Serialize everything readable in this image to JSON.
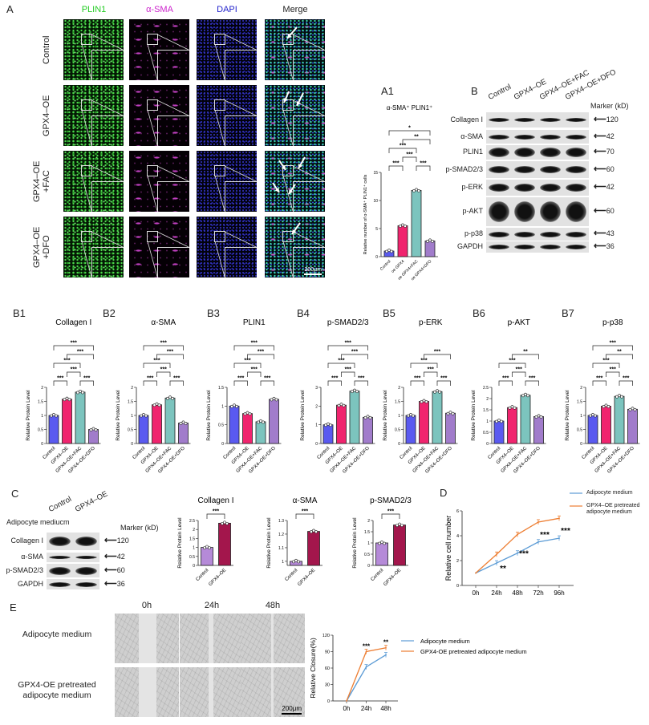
{
  "panel_A": {
    "label": "A",
    "channels": [
      "PLIN1",
      "α-SMA",
      "DAPI",
      "Merge"
    ],
    "channel_colors": [
      "#22cc22",
      "#cc22cc",
      "#2222cc",
      "#222222"
    ],
    "rows": [
      [
        "Control"
      ],
      [
        "GPX4–OE"
      ],
      [
        "GPX4–OE",
        "+FAC"
      ],
      [
        "GPX4–OE",
        "+DFO"
      ]
    ],
    "scale_bar": "200μm"
  },
  "panel_A1": {
    "label": "A1"
  },
  "panel_B": {
    "label": "B",
    "lanes": [
      "Control",
      "GPX4–OE",
      "GPX4–OE+FAC",
      "GPX4–OE+DFO"
    ],
    "marker_title": "Marker (kD)",
    "rows": [
      {
        "protein": "Collagen I",
        "marker": "120"
      },
      {
        "protein": "α-SMA",
        "marker": "42"
      },
      {
        "protein": "PLIN1",
        "marker": "70"
      },
      {
        "protein": "p-SMAD2/3",
        "marker": "60"
      },
      {
        "protein": "p-ERK",
        "marker": "42"
      },
      {
        "protein": "p-AKT",
        "marker": "60"
      },
      {
        "protein": "p-p38",
        "marker": "43"
      },
      {
        "protein": "GAPDH",
        "marker": "36"
      }
    ]
  },
  "panel_B_labels": [
    "B1",
    "B2",
    "B3",
    "B4",
    "B5",
    "B6",
    "B7"
  ],
  "panel_C": {
    "label": "C",
    "condition": "Adipocyte mediucm",
    "lanes": [
      "Control",
      "GPX4–OE"
    ],
    "marker_title": "Marker (kD)",
    "rows": [
      {
        "protein": "Collagen I",
        "marker": "120"
      },
      {
        "protein": "α-SMA",
        "marker": "42"
      },
      {
        "protein": "p-SMAD2/3",
        "marker": "60"
      },
      {
        "protein": "GAPDH",
        "marker": "36"
      }
    ]
  },
  "panel_D": {
    "label": "D"
  },
  "panel_E": {
    "label": "E",
    "timepoints": [
      "0h",
      "24h",
      "48h"
    ],
    "rows": [
      [
        "Adipocyte medium"
      ],
      [
        "GPX4-OE pretreated",
        "adipocyte medium"
      ]
    ],
    "scale_bar": "200μm"
  },
  "colors": {
    "Control": "#5a5af0",
    "GPX4-OE": "#f0246e",
    "GPX4-OE+FAC": "#7cc4be",
    "GPX4-OE+DFO": "#a17ccb",
    "C_Control": "#b58ad8",
    "C_GPX4-OE": "#a3164c",
    "line_adipocyte": "#5b9bd5",
    "line_gpx4": "#ed7d31"
  },
  "chart_data": [
    {
      "id": "A1",
      "type": "bar",
      "title": "α-SMA⁺ PLIN1⁺",
      "ylabel": "Relative number of α-SMA⁺ PLIN1⁺ cells",
      "categories": [
        "Control",
        "oe GPX4",
        "oe GPX4+FAC",
        "oe GPX4+DFO"
      ],
      "values": [
        1.0,
        5.5,
        11.8,
        2.8
      ],
      "ylim": [
        0,
        15
      ],
      "yticks": [
        0,
        5,
        10,
        15
      ],
      "colors": [
        "#5a5af0",
        "#f0246e",
        "#7cc4be",
        "#a17ccb"
      ],
      "significance": [
        [
          0,
          1,
          "***"
        ],
        [
          2,
          3,
          "***"
        ],
        [
          1,
          2,
          "***"
        ],
        [
          0,
          2,
          "***"
        ],
        [
          1,
          3,
          "**"
        ],
        [
          0,
          3,
          "*"
        ]
      ]
    },
    {
      "id": "B1",
      "type": "bar",
      "title": "Collagen I",
      "ylabel": "Relative Protein Level",
      "categories": [
        "Control",
        "GPX4–OE",
        "GPX4–OE+FAC",
        "GPX4–OE+DFO"
      ],
      "values": [
        1.0,
        1.58,
        1.83,
        0.5
      ],
      "ylim": [
        0,
        2
      ],
      "yticks": [
        0,
        0.5,
        1.0,
        1.5,
        2.0
      ],
      "colors": [
        "#5a5af0",
        "#f0246e",
        "#7cc4be",
        "#a17ccb"
      ],
      "significance": [
        [
          0,
          1,
          "***"
        ],
        [
          2,
          3,
          "***"
        ],
        [
          1,
          2,
          "***"
        ],
        [
          0,
          2,
          "***"
        ],
        [
          1,
          3,
          "***"
        ],
        [
          0,
          3,
          "***"
        ]
      ]
    },
    {
      "id": "B2",
      "type": "bar",
      "title": "α-SMA",
      "ylabel": "Relative Protein Level",
      "categories": [
        "Control",
        "GPX4–OE",
        "GPX4–OE+FAC",
        "GPX4–OE+DFO"
      ],
      "values": [
        1.0,
        1.38,
        1.62,
        0.73
      ],
      "ylim": [
        0,
        2
      ],
      "yticks": [
        0,
        0.5,
        1.0,
        1.5,
        2.0
      ],
      "colors": [
        "#5a5af0",
        "#f0246e",
        "#7cc4be",
        "#a17ccb"
      ],
      "significance": [
        [
          0,
          1,
          "***"
        ],
        [
          2,
          3,
          "***"
        ],
        [
          1,
          2,
          "***"
        ],
        [
          0,
          2,
          "***"
        ],
        [
          1,
          3,
          "***"
        ],
        [
          0,
          3,
          "***"
        ]
      ]
    },
    {
      "id": "B3",
      "type": "bar",
      "title": "PLIN1",
      "ylabel": "Relative Protein Level",
      "categories": [
        "Control",
        "GPX4–OE",
        "GPX4–OE+FAC",
        "GPX4–OE+DFO"
      ],
      "values": [
        1.0,
        0.8,
        0.58,
        1.18
      ],
      "ylim": [
        0,
        1.5
      ],
      "yticks": [
        0,
        0.5,
        1.0,
        1.5
      ],
      "colors": [
        "#5a5af0",
        "#f0246e",
        "#7cc4be",
        "#a17ccb"
      ],
      "significance": [
        [
          0,
          1,
          "***"
        ],
        [
          2,
          3,
          "***"
        ],
        [
          1,
          2,
          "***"
        ],
        [
          0,
          2,
          "***"
        ],
        [
          1,
          3,
          "***"
        ],
        [
          0,
          3,
          "***"
        ]
      ]
    },
    {
      "id": "B4",
      "type": "bar",
      "title": "p-SMAD2/3",
      "ylabel": "Relative Protein Level",
      "categories": [
        "Control",
        "GPX4–OE",
        "GPX4–OE+FAC",
        "GPX4–OE+DFO"
      ],
      "values": [
        1.0,
        2.05,
        2.8,
        1.4
      ],
      "ylim": [
        0,
        3
      ],
      "yticks": [
        0,
        1,
        2,
        3
      ],
      "colors": [
        "#5a5af0",
        "#f0246e",
        "#7cc4be",
        "#a17ccb"
      ],
      "significance": [
        [
          0,
          1,
          "***"
        ],
        [
          2,
          3,
          "***"
        ],
        [
          1,
          2,
          "***"
        ],
        [
          0,
          2,
          "***"
        ],
        [
          1,
          3,
          "***"
        ],
        [
          0,
          3,
          "***"
        ]
      ]
    },
    {
      "id": "B5",
      "type": "bar",
      "title": "p-ERK",
      "ylabel": "Relative Protein Level",
      "categories": [
        "Control",
        "GPX4–OE",
        "GPX4–OE+FAC",
        "GPX4–OE+DFO"
      ],
      "values": [
        1.0,
        1.5,
        1.85,
        1.08
      ],
      "ylim": [
        0,
        2
      ],
      "yticks": [
        0,
        0.5,
        1.0,
        1.5,
        2.0
      ],
      "colors": [
        "#5a5af0",
        "#f0246e",
        "#7cc4be",
        "#a17ccb"
      ],
      "significance": [
        [
          0,
          1,
          "***"
        ],
        [
          2,
          3,
          "***"
        ],
        [
          1,
          2,
          "***"
        ],
        [
          0,
          2,
          "***"
        ],
        [
          1,
          3,
          "***"
        ]
      ]
    },
    {
      "id": "B6",
      "type": "bar",
      "title": "p-AKT",
      "ylabel": "Relative Protein Level",
      "categories": [
        "Control",
        "GPX4–OE",
        "GPX4–OE+FAC",
        "GPX4–OE+DFO"
      ],
      "values": [
        1.0,
        1.6,
        2.15,
        1.2
      ],
      "ylim": [
        0,
        2.5
      ],
      "yticks": [
        0,
        0.5,
        1.0,
        1.5,
        2.0,
        2.5
      ],
      "colors": [
        "#5a5af0",
        "#f0246e",
        "#7cc4be",
        "#a17ccb"
      ],
      "significance": [
        [
          0,
          1,
          "***"
        ],
        [
          2,
          3,
          "***"
        ],
        [
          1,
          2,
          "***"
        ],
        [
          0,
          2,
          "***"
        ],
        [
          1,
          3,
          "**"
        ]
      ]
    },
    {
      "id": "B7",
      "type": "bar",
      "title": "p-p38",
      "ylabel": "Relative Protein Level",
      "categories": [
        "Control",
        "GPX4–OE",
        "GPX4–OE+FAC",
        "GPX4–OE+DFO"
      ],
      "values": [
        1.0,
        1.33,
        1.68,
        1.22
      ],
      "ylim": [
        0,
        2
      ],
      "yticks": [
        0,
        0.5,
        1.0,
        1.5,
        2.0
      ],
      "colors": [
        "#5a5af0",
        "#f0246e",
        "#7cc4be",
        "#a17ccb"
      ],
      "significance": [
        [
          0,
          1,
          "***"
        ],
        [
          2,
          3,
          "***"
        ],
        [
          1,
          2,
          "***"
        ],
        [
          0,
          2,
          "***"
        ],
        [
          1,
          3,
          "**"
        ],
        [
          0,
          3,
          "***"
        ]
      ]
    },
    {
      "id": "C1",
      "type": "bar",
      "title": "Collagen I",
      "ylabel": "Relative Protein Level",
      "categories": [
        "Control",
        "GPX4–OE"
      ],
      "values": [
        1.0,
        2.35
      ],
      "ylim": [
        0,
        2.5
      ],
      "yticks": [
        0,
        0.5,
        1.0,
        1.5,
        2.0,
        2.5
      ],
      "colors": [
        "#b58ad8",
        "#a3164c"
      ],
      "significance": [
        [
          0,
          1,
          "***"
        ]
      ]
    },
    {
      "id": "C2",
      "type": "bar",
      "title": "α-SMA",
      "ylabel": "Relative Protein Level",
      "categories": [
        "Control",
        "GPX4–OE"
      ],
      "values": [
        1.0,
        1.22
      ],
      "ylim": [
        0.97,
        1.3
      ],
      "yticks": [
        1.0,
        1.1,
        1.2,
        1.3
      ],
      "colors": [
        "#b58ad8",
        "#a3164c"
      ],
      "significance": [
        [
          0,
          1,
          "***"
        ]
      ]
    },
    {
      "id": "C3",
      "type": "bar",
      "title": "p-SMAD2/3",
      "ylabel": "Relative Protein Level",
      "categories": [
        "Control",
        "GPX4–OE"
      ],
      "values": [
        1.0,
        1.8
      ],
      "ylim": [
        0,
        2.0
      ],
      "yticks": [
        0,
        0.5,
        1.0,
        1.5,
        2.0
      ],
      "colors": [
        "#b58ad8",
        "#a3164c"
      ],
      "significance": [
        [
          0,
          1,
          "***"
        ]
      ]
    },
    {
      "id": "D",
      "type": "line",
      "ylabel": "Relative cell number",
      "x": [
        "0h",
        "24h",
        "48h",
        "72h",
        "96h"
      ],
      "ylim": [
        0,
        6
      ],
      "yticks": [
        0,
        2,
        4,
        6
      ],
      "series": [
        {
          "name": "Adipocyte medium",
          "values": [
            1.0,
            1.8,
            2.6,
            3.5,
            3.8
          ],
          "color": "#5b9bd5"
        },
        {
          "name": "GPX4–OE pretreated adipocyte medium",
          "values": [
            1.0,
            2.5,
            4.1,
            5.1,
            5.4
          ],
          "color": "#ed7d31"
        }
      ],
      "annotations": [
        {
          "x": "24h",
          "text": "**"
        },
        {
          "x": "48h",
          "text": "***"
        },
        {
          "x": "72h",
          "text": "***"
        },
        {
          "x": "96h",
          "text": "***"
        }
      ],
      "legend": "top-right"
    },
    {
      "id": "E",
      "type": "line",
      "ylabel": "Relative Closure(%)",
      "x": [
        "0h",
        "24h",
        "48h"
      ],
      "ylim": [
        0,
        120
      ],
      "yticks": [
        0,
        30,
        60,
        90,
        120
      ],
      "series": [
        {
          "name": "Adipocyte medium",
          "values": [
            0,
            62,
            84
          ],
          "color": "#5b9bd5"
        },
        {
          "name": "GPX4-OE pretreated adipocyte medium",
          "values": [
            0,
            90,
            97
          ],
          "color": "#ed7d31"
        }
      ],
      "annotations": [
        {
          "x": "24h",
          "text": "***"
        },
        {
          "x": "48h",
          "text": "**"
        }
      ],
      "legend": "right"
    }
  ]
}
